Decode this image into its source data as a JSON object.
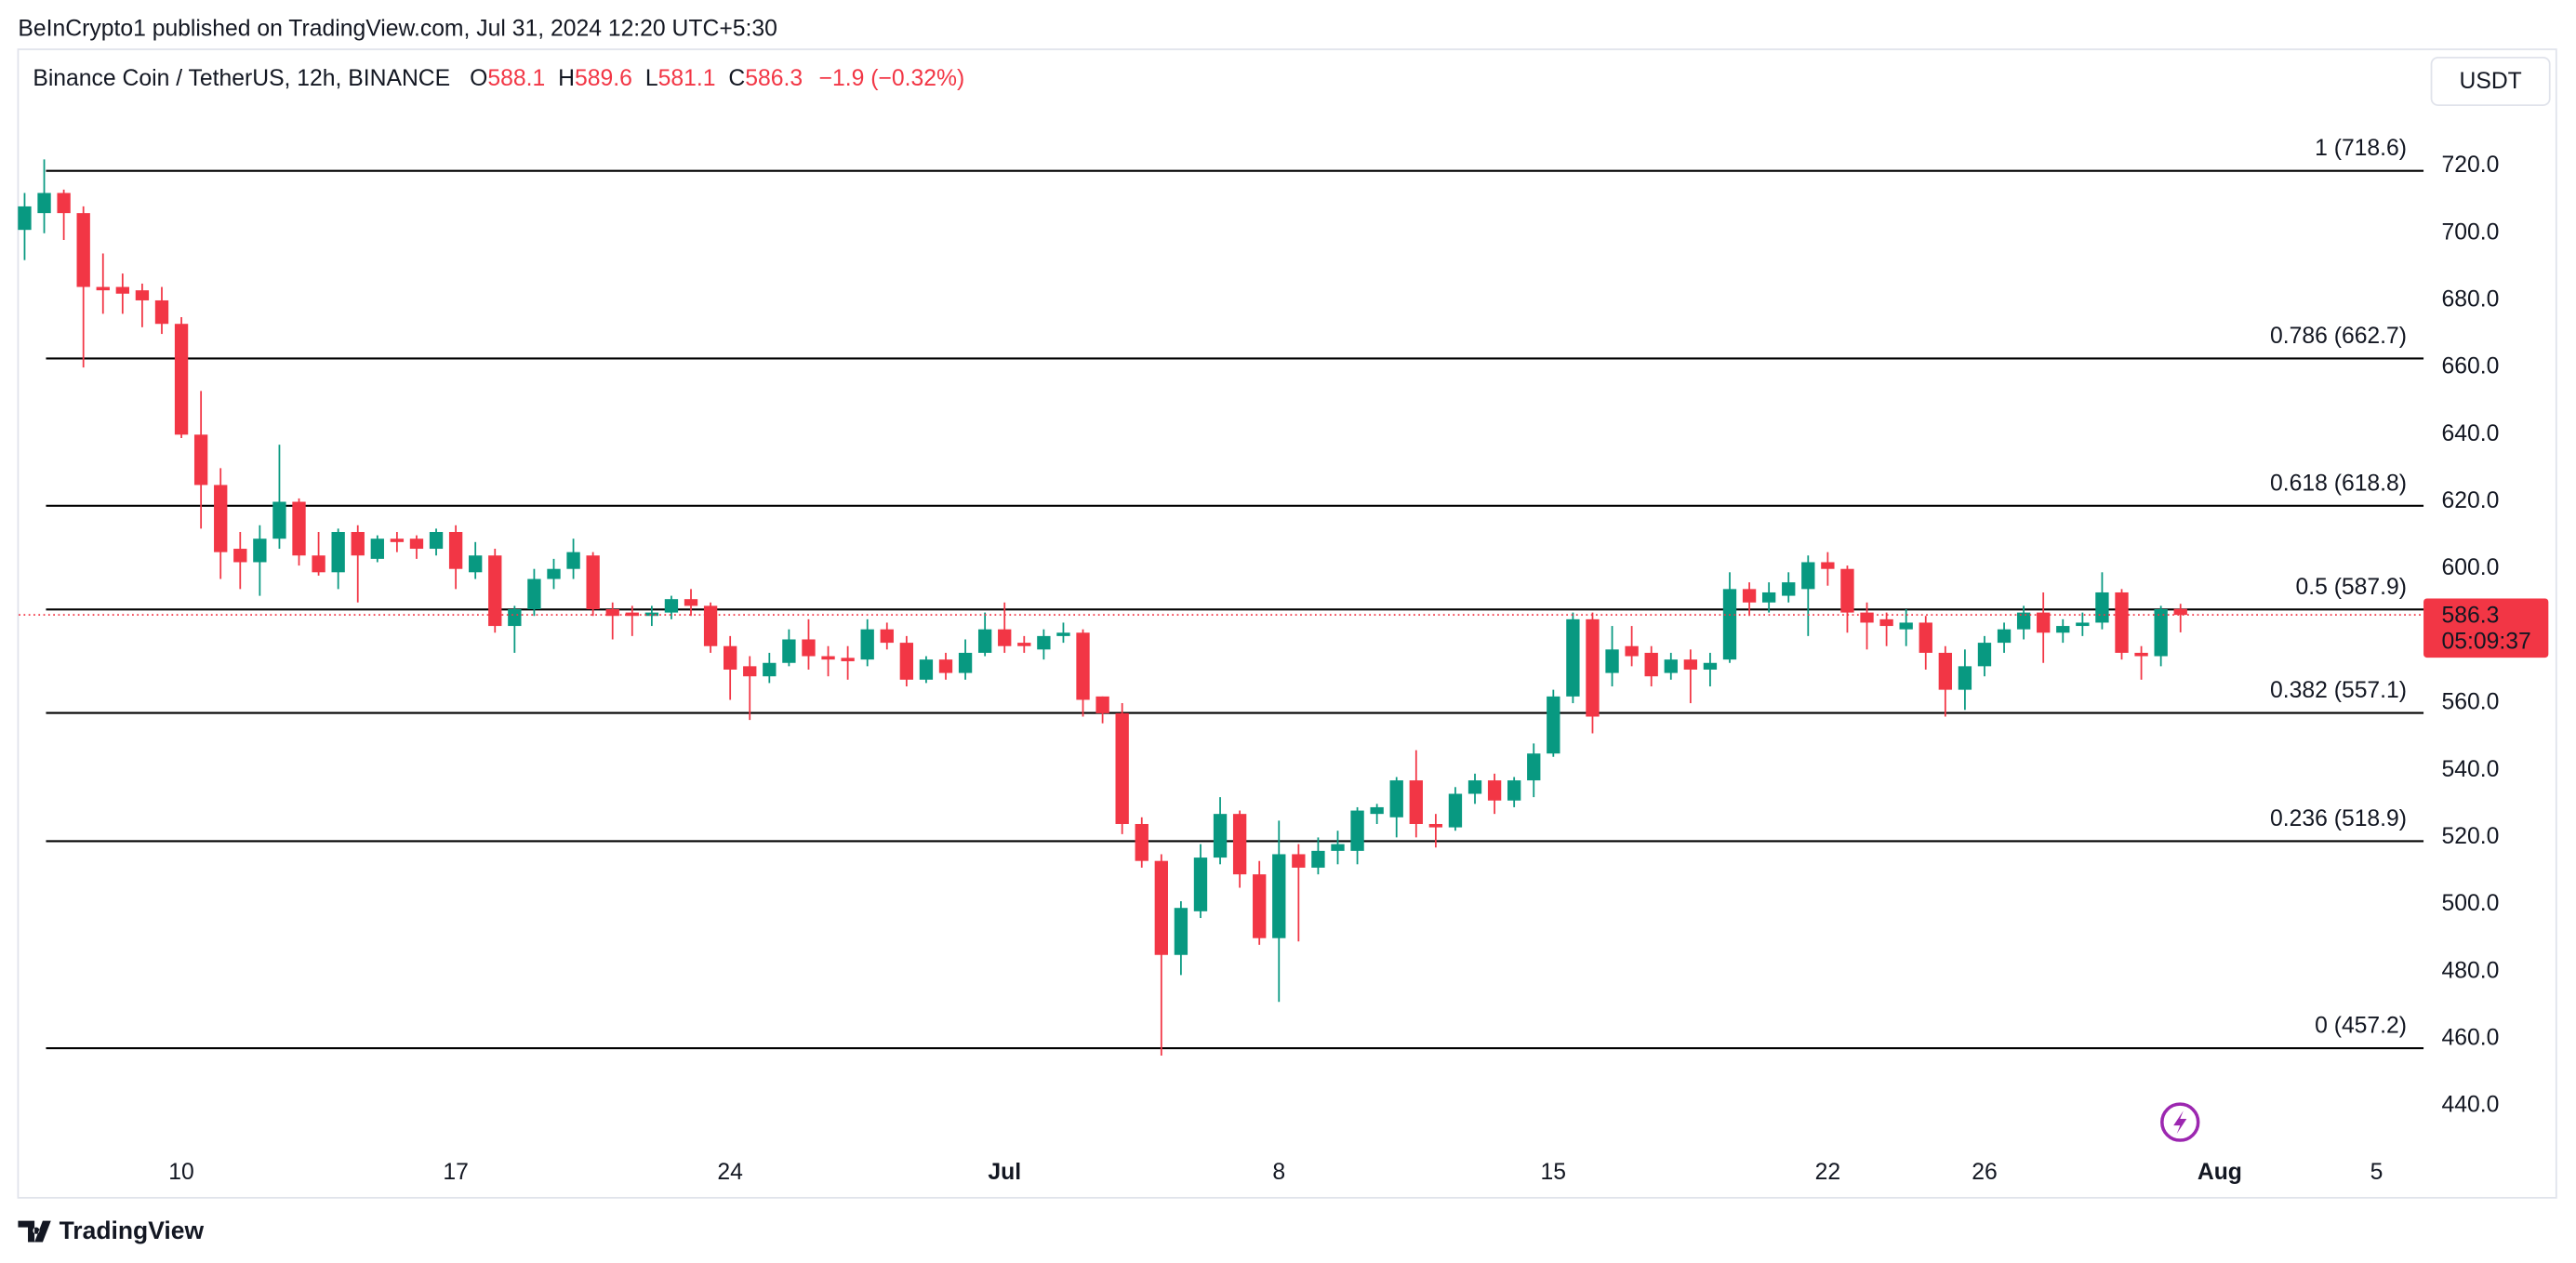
{
  "header": {
    "publisher": "BeInCrypto1 published on TradingView.com, Jul 31, 2024 12:20 UTC+5:30",
    "currency_button": "USDT",
    "footer_logo": "TradingView"
  },
  "chart_data": {
    "type": "candlestick",
    "title": "Binance Coin / TetherUS, 12h, BINANCE",
    "ohlc_legend": {
      "o_label": "O",
      "open": "588.1",
      "h_label": "H",
      "high": "589.6",
      "l_label": "L",
      "low": "581.1",
      "c_label": "C",
      "close": "586.3",
      "change": "−1.9 (−0.32%)"
    },
    "up_color": "#089981",
    "down_color": "#f23645",
    "open": [
      701,
      706,
      712,
      706,
      684,
      684,
      683,
      680,
      673,
      640,
      625,
      606,
      602,
      609,
      620,
      604,
      599,
      611,
      603,
      609,
      609,
      606,
      611,
      599,
      604,
      583,
      588,
      597,
      600,
      604,
      588,
      587,
      586,
      587,
      591,
      589,
      577,
      571,
      568,
      572,
      579,
      574,
      573.5,
      573,
      582,
      578,
      567,
      573,
      569,
      575,
      582,
      578,
      576,
      580,
      581,
      562,
      557,
      524,
      513,
      485,
      498,
      514,
      527,
      509,
      490,
      515,
      511,
      516,
      516,
      527,
      526,
      537,
      524,
      523,
      533,
      537,
      531,
      537,
      545,
      562,
      585,
      569,
      577,
      575,
      569,
      573,
      570,
      573,
      594,
      590,
      592,
      594,
      602,
      600,
      587,
      585,
      582,
      584,
      575,
      564,
      571,
      578,
      582,
      587,
      581,
      583,
      584,
      593,
      575,
      574,
      588.1
    ],
    "high": [
      712,
      722,
      713,
      708,
      694,
      688,
      685,
      684,
      675,
      653,
      630,
      611,
      613,
      637,
      621,
      611,
      612,
      613,
      610,
      611,
      610,
      612,
      613,
      608,
      606,
      589,
      600,
      603,
      609,
      605,
      590,
      589,
      589,
      592,
      594,
      590,
      580,
      574,
      575,
      582,
      585,
      577,
      577,
      585,
      584,
      580,
      574,
      575,
      579,
      587,
      590,
      580,
      582,
      584,
      582,
      562,
      560,
      526,
      515,
      501,
      518,
      532,
      528,
      513,
      525,
      518,
      520,
      522,
      529,
      530,
      538,
      546,
      527,
      535,
      539,
      539,
      538,
      548,
      564,
      587,
      587,
      583,
      583,
      577,
      575,
      576,
      575,
      599,
      596,
      596,
      599,
      604,
      605,
      601,
      590,
      587,
      588,
      586,
      577,
      576,
      580,
      584,
      589,
      593,
      585,
      587,
      599,
      594,
      577,
      589,
      589.6
    ],
    "low": [
      692,
      700,
      698,
      660,
      676,
      676,
      672,
      670,
      639,
      612,
      597,
      594,
      592,
      606,
      601,
      598,
      594,
      590,
      602,
      605,
      603,
      604,
      594,
      597,
      581,
      575,
      586,
      594,
      597,
      586,
      579,
      580,
      583,
      585,
      586,
      575,
      561,
      555,
      566,
      571,
      570,
      568,
      567,
      571,
      576,
      565,
      566,
      567,
      567,
      574,
      575,
      575,
      573,
      578,
      556,
      554,
      521,
      511,
      455,
      479,
      496,
      512,
      505,
      488,
      471,
      489,
      509,
      512,
      512,
      524,
      520,
      520,
      517,
      522,
      530,
      527,
      529,
      532,
      544,
      560,
      551,
      565,
      571,
      565,
      567,
      560,
      565,
      572,
      586,
      587,
      590,
      580,
      595,
      581,
      576,
      577,
      577,
      570,
      556,
      558,
      568,
      575,
      579,
      572,
      578,
      580,
      582,
      573,
      567,
      571,
      581.1
    ],
    "close": [
      708,
      712,
      706,
      684,
      683,
      682,
      680,
      673,
      640,
      625,
      605,
      602,
      609,
      620,
      604,
      599,
      611,
      604,
      609,
      608,
      606,
      611,
      600,
      604,
      583,
      588,
      597,
      600,
      605,
      588,
      586,
      586,
      587,
      591,
      589,
      577,
      570,
      568,
      572,
      579,
      574,
      573,
      572.5,
      582,
      578,
      567,
      573,
      569,
      575,
      582,
      577,
      577,
      580,
      581,
      561,
      557,
      524,
      513,
      485,
      499,
      514,
      527,
      509,
      490,
      515,
      511,
      516,
      518,
      528,
      529,
      537,
      524,
      523,
      533,
      537,
      531,
      537,
      545,
      562,
      585,
      556,
      576,
      574,
      568,
      573,
      570,
      572,
      594,
      590,
      593,
      596,
      602,
      600,
      587,
      584,
      583,
      584,
      575,
      564,
      571,
      578,
      582,
      587,
      581,
      583,
      584,
      593,
      575,
      574,
      588,
      586.3
    ],
    "xlim": [
      -0.3,
      122.4
    ],
    "xticks": [
      {
        "value": 8,
        "label": "10"
      },
      {
        "value": 22,
        "label": "17"
      },
      {
        "value": 36,
        "label": "24"
      },
      {
        "value": 50,
        "label": "Jul"
      },
      {
        "value": 64,
        "label": "8"
      },
      {
        "value": 78,
        "label": "15"
      },
      {
        "value": 92,
        "label": "22"
      },
      {
        "value": 100,
        "label": "26"
      },
      {
        "value": 112,
        "label": "Aug"
      },
      {
        "value": 120,
        "label": "5"
      }
    ],
    "ylim": [
      424.4,
      754.8
    ],
    "yticks": [
      {
        "value": 440,
        "label": "440.0"
      },
      {
        "value": 460,
        "label": "460.0"
      },
      {
        "value": 480,
        "label": "480.0"
      },
      {
        "value": 500,
        "label": "500.0"
      },
      {
        "value": 520,
        "label": "520.0"
      },
      {
        "value": 540,
        "label": "540.0"
      },
      {
        "value": 560,
        "label": "560.0"
      },
      {
        "value": 580,
        "label": "580.0"
      },
      {
        "value": 600,
        "label": "600.0"
      },
      {
        "value": 620,
        "label": "620.0"
      },
      {
        "value": 640,
        "label": "640.0"
      },
      {
        "value": 660,
        "label": "660.0"
      },
      {
        "value": 680,
        "label": "680.0"
      },
      {
        "value": 700,
        "label": "700.0"
      },
      {
        "value": 720,
        "label": "720.0"
      }
    ],
    "fib_levels": [
      {
        "value": 718.6,
        "label": "1 (718.6)"
      },
      {
        "value": 662.7,
        "label": "0.786 (662.7)"
      },
      {
        "value": 618.8,
        "label": "0.618 (618.8)"
      },
      {
        "value": 587.9,
        "label": "0.5 (587.9)"
      },
      {
        "value": 557.1,
        "label": "0.382 (557.1)"
      },
      {
        "value": 518.9,
        "label": "0.236 (518.9)"
      },
      {
        "value": 457.2,
        "label": "0 (457.2)"
      }
    ],
    "fib_color": "#000000",
    "last_price": {
      "value": 586.3,
      "label": "586.3"
    },
    "countdown": "05:09:37"
  }
}
